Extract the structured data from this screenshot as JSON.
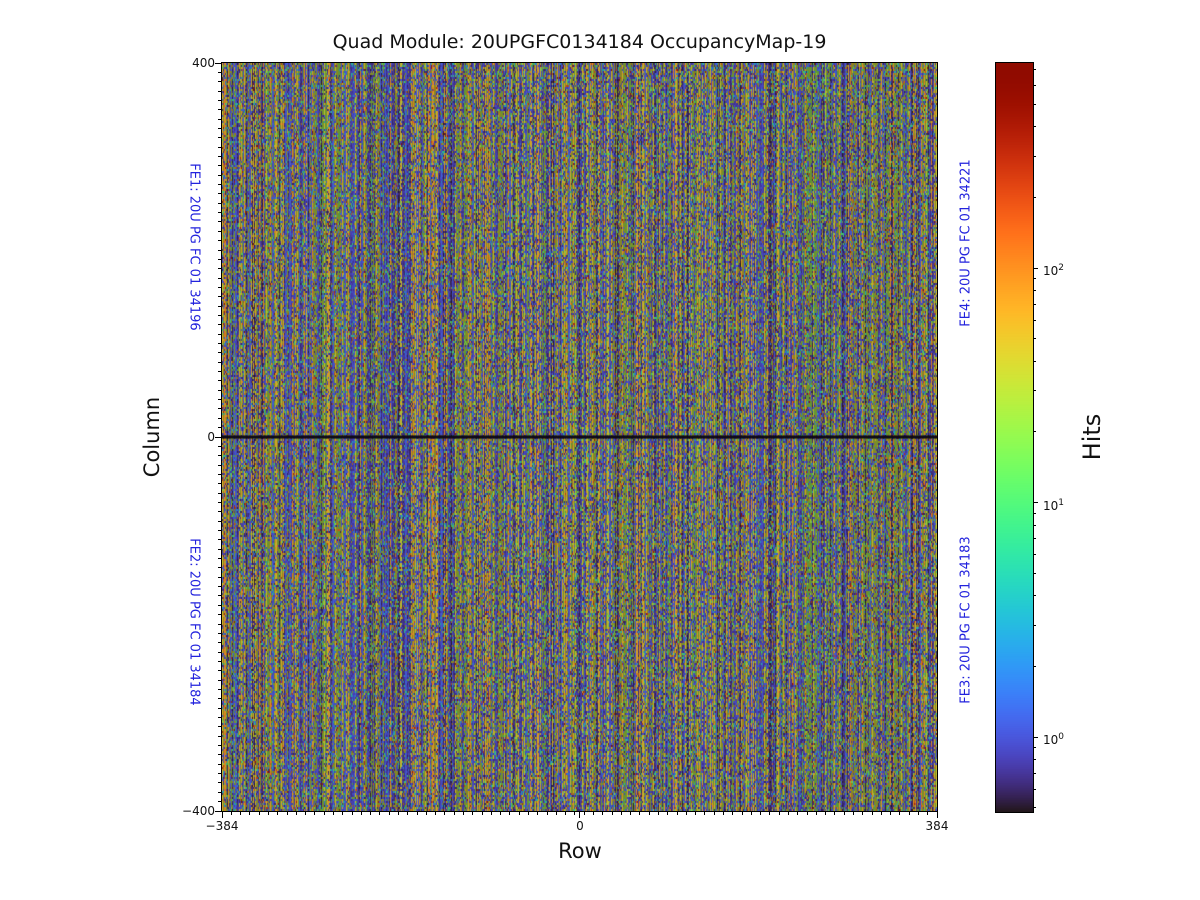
{
  "title": "Quad Module: 20UPGFC0134184 OccupancyMap-19",
  "axes": {
    "xlabel": "Row",
    "ylabel": "Column",
    "x_tick_labels": [
      "−384",
      "0",
      "384"
    ],
    "y_tick_labels": [
      "400",
      "0",
      "−400"
    ]
  },
  "fe_labels": {
    "fe1": "FE1: 20U PG FC 01 34196",
    "fe2": "FE2: 20U PG FC 01 34184",
    "fe3": "FE3: 20U PG FC 01 34183",
    "fe4": "FE4: 20U PG FC 01 34221",
    "color": "#2222dd"
  },
  "colorbar": {
    "label": "Hits",
    "ticks": [
      {
        "base": "10",
        "exp": "2"
      },
      {
        "base": "10",
        "exp": "1"
      },
      {
        "base": "10",
        "exp": "0"
      }
    ]
  },
  "chart_data": {
    "type": "heatmap",
    "title": "Quad Module: 20UPGFC0134184 OccupancyMap-19",
    "xlabel": "Row",
    "ylabel": "Column",
    "x_range": [
      -384,
      384
    ],
    "y_range": [
      -400,
      400
    ],
    "x_ticks": [
      -384,
      0,
      384
    ],
    "y_ticks": [
      400,
      0,
      -400
    ],
    "grid": false,
    "colorbar": {
      "label": "Hits",
      "scale": "log",
      "tick_values": [
        1,
        10,
        100
      ],
      "approx_value_range": [
        0.48,
        750
      ],
      "colormap": "turbo"
    },
    "quadrants": [
      {
        "position": "top-left",
        "label": "FE1: 20U PG FC 01 34196"
      },
      {
        "position": "bottom-left",
        "label": "FE2: 20U PG FC 01 34184"
      },
      {
        "position": "bottom-right",
        "label": "FE3: 20U PG FC 01 34183"
      },
      {
        "position": "top-right",
        "label": "FE4: 20U PG FC 01 34221"
      }
    ],
    "description": "Dense pseudo-random pixel occupancy map of a quad pixel module (768 rows x 800 columns). Vertical stripe noise pattern of yellow/olive/orange columns interleaved with dark purple, speckled with blue/cyan/green hits spanning roughly 0.5 to 750 hits on a log color scale. Dark separation line at Column 0 and a faint dark seam at Row 0 divide the four front-end quadrants.",
    "noise_model": {
      "seed": 20134184,
      "col_bright_frac": 0.26,
      "col_olive_frac": 0.26,
      "speck_dark_frac": 0.25,
      "speck_hit_frac": 0.13,
      "block_h": 2,
      "mid_line": true,
      "center_seam": true,
      "mute_blend": 0.12,
      "mute_color": [
        36,
        24,
        48
      ]
    }
  }
}
